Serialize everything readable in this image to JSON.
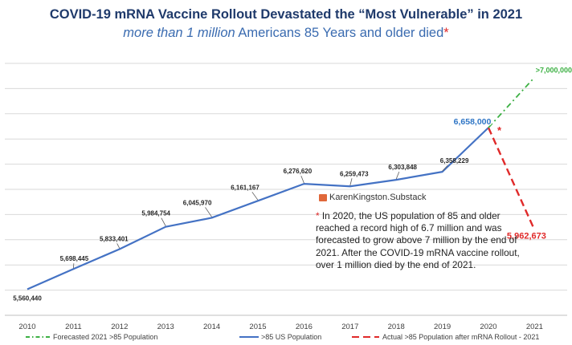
{
  "title": "COVID-19 mRNA Vaccine Rollout Devastated the “Most Vulnerable” in 2021",
  "subtitle": {
    "italic_part": "more than 1 million",
    "rest": " Americans 85 Years and older died",
    "asterisk": "*"
  },
  "source": "KarenKingston.Substack",
  "note": {
    "asterisk": "*",
    "text": " In 2020, the US population of 85 and older reached a record high of 6.7 million and was forecasted to grow above 7 million by the end of 2021. After the COVID-19 mRNA vaccine rollout, over 1 million died by the end of 2021."
  },
  "chart_data": {
    "type": "line",
    "x": [
      "2010",
      "2011",
      "2012",
      "2013",
      "2014",
      "2015",
      "2016",
      "2017",
      "2018",
      "2019",
      "2020",
      "2021"
    ],
    "ylim": [
      5400000,
      7100000
    ],
    "grid": true,
    "legend_position": "bottom",
    "series": [
      {
        "name": ">85 US Population",
        "color": "#4472c4",
        "style": "solid",
        "x": [
          "2010",
          "2011",
          "2012",
          "2013",
          "2014",
          "2015",
          "2016",
          "2017",
          "2018",
          "2019",
          "2020"
        ],
        "values": [
          5560440,
          5698445,
          5833401,
          5984754,
          6045970,
          6161167,
          6276620,
          6259473,
          6303848,
          6358229,
          6658000
        ],
        "labels": [
          "5,560,440",
          "5,698,445",
          "5,833,401",
          "5,984,754",
          "6,045,970",
          "6,161,167",
          "6,276,620",
          "6,259,473",
          "6,303,848",
          "6,358,229",
          "6,658,000"
        ]
      },
      {
        "name": "Actual  >85 Population after mRNA Rollout - 2021",
        "color": "#e02a2a",
        "style": "dashed",
        "x": [
          "2020",
          "2021"
        ],
        "values": [
          6658000,
          5962673
        ],
        "labels": [
          "",
          "5,962,673"
        ]
      },
      {
        "name": "Forecasted 2021 >85 Population",
        "color": "#3cb043",
        "style": "dash-dot",
        "x": [
          "2020",
          "2021"
        ],
        "values": [
          6658000,
          7000000
        ],
        "labels": [
          "",
          ">7,000,000"
        ]
      }
    ],
    "annotations": [
      {
        "text": "*",
        "x": "2020",
        "color": "#e02a2a"
      }
    ]
  }
}
